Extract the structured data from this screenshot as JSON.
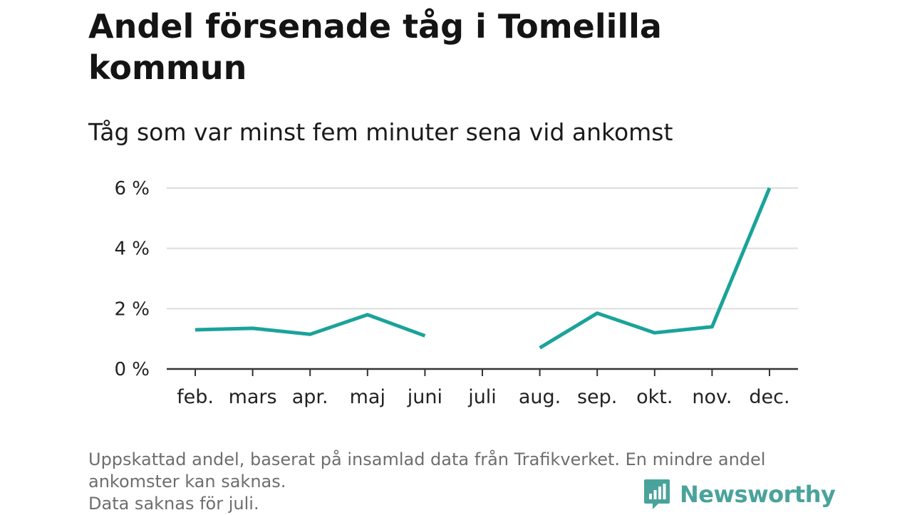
{
  "title": "Andel försenade tåg i Tomelilla kommun",
  "subtitle": "Tåg som var minst fem minuter sena vid ankomst",
  "footnote": {
    "line1": "Uppskattad andel, baserat på insamlad data från Trafikverket. En mindre andel",
    "line2": "ankomster kan saknas.",
    "line3": "Data saknas för juli."
  },
  "logo": {
    "text": "Newsworthy",
    "icon": "bar-chart-speech-bubble-icon"
  },
  "colors": {
    "line": "#1aa39a",
    "grid": "#dddddd",
    "axis": "#333333",
    "logo": "#4aa39b"
  },
  "chart_data": {
    "type": "line",
    "categories": [
      "feb.",
      "mars",
      "apr.",
      "maj",
      "juni",
      "juli",
      "aug.",
      "sep.",
      "okt.",
      "nov.",
      "dec."
    ],
    "series": [
      {
        "values": [
          1.3,
          1.35,
          1.15,
          1.8,
          1.1,
          null,
          0.7,
          1.85,
          1.2,
          1.4,
          6.0
        ]
      }
    ],
    "yticks": [
      0,
      2,
      4,
      6
    ],
    "ytick_labels": [
      "0 %",
      "2 %",
      "4 %",
      "6 %"
    ],
    "ylim": [
      0,
      6
    ],
    "grid": true
  }
}
